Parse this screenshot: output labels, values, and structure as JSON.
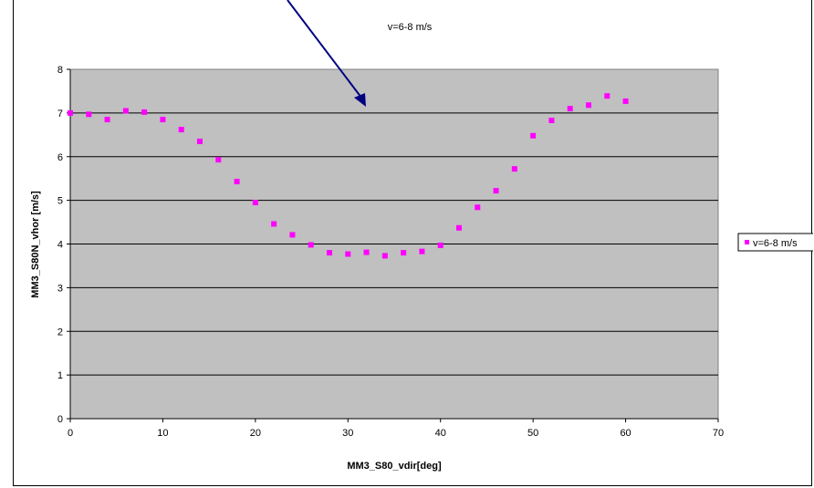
{
  "chart_data": {
    "type": "scatter",
    "title": "v=6-8 m/s",
    "xlabel": "MM3_S80_vdir[deg]",
    "ylabel": "MM3_S80N_vhor [m/s]",
    "xlim": [
      0,
      70
    ],
    "ylim": [
      0,
      8
    ],
    "x_ticks": [
      0,
      10,
      20,
      30,
      40,
      50,
      60,
      70
    ],
    "y_ticks": [
      0,
      1,
      2,
      3,
      4,
      5,
      6,
      7,
      8
    ],
    "x_tick_labels": [
      "0",
      "10",
      "20",
      "30",
      "40",
      "50",
      "60",
      "70"
    ],
    "y_tick_labels": [
      "0",
      "1",
      "2",
      "3",
      "4",
      "5",
      "6",
      "7",
      "8"
    ],
    "grid": "horizontal major gridlines",
    "plot_background": "#c0c0c0",
    "legend_position": "right",
    "series": [
      {
        "name": "v=6-8 m/s",
        "color": "#ff00ff",
        "marker": "square",
        "x": [
          0,
          2,
          4,
          6,
          8,
          10,
          12,
          14,
          16,
          18,
          20,
          22,
          24,
          26,
          28,
          30,
          32,
          34,
          36,
          38,
          40,
          42,
          44,
          46,
          48,
          50,
          52,
          54,
          56,
          58,
          60
        ],
        "y": [
          7.0,
          6.97,
          6.85,
          7.05,
          7.02,
          6.85,
          6.62,
          6.35,
          5.93,
          5.43,
          4.95,
          4.46,
          4.21,
          3.98,
          3.8,
          3.77,
          3.81,
          3.73,
          3.8,
          3.83,
          3.97,
          4.37,
          4.84,
          5.22,
          5.72,
          6.48,
          6.83,
          7.1,
          7.18,
          7.39,
          7.27
        ]
      }
    ],
    "annotations": [
      {
        "type": "arrow",
        "color": "#000080"
      }
    ]
  }
}
